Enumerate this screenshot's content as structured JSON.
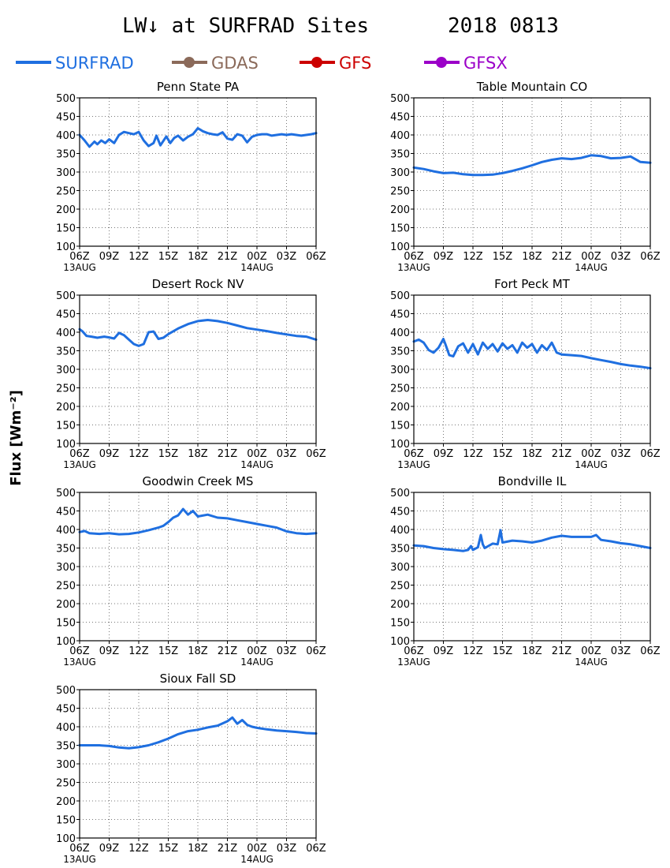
{
  "figure": {
    "title": "LW↓ at SURFRAD Sites",
    "date": "2018 0813",
    "ylabel": "Flux [Wm⁻²]",
    "legend": [
      {
        "label": "SURFRAD",
        "color": "#1f6fe0",
        "marker": false
      },
      {
        "label": "GDAS",
        "color": "#8b6a5a",
        "marker": true
      },
      {
        "label": "GFS",
        "color": "#cc0000",
        "marker": true
      },
      {
        "label": "GFSX",
        "color": "#9b00c8",
        "marker": true
      }
    ],
    "series_color": "#1f6fe0"
  },
  "chart_data": [
    {
      "type": "line",
      "title": "Penn State PA",
      "ylim": [
        100,
        500
      ],
      "yticks": [
        100,
        150,
        200,
        250,
        300,
        350,
        400,
        450,
        500
      ],
      "xlim": [
        0,
        24
      ],
      "xtick_labels": [
        "06Z",
        "09Z",
        "12Z",
        "15Z",
        "18Z",
        "21Z",
        "00Z",
        "03Z",
        "06Z"
      ],
      "date_labels": [
        "13AUG",
        "14AUG"
      ],
      "grid": true,
      "series": [
        {
          "x": [
            0,
            0.5,
            1,
            1.5,
            1.8,
            2.2,
            2.6,
            3,
            3.5,
            4,
            4.5,
            5,
            5.5,
            6,
            6.5,
            7,
            7.5,
            7.8,
            8.2,
            8.8,
            9.2,
            9.6,
            10,
            10.5,
            11,
            11.5,
            12,
            12.5,
            13,
            13.5,
            14,
            14.5,
            15,
            15.5,
            16,
            16.5,
            17,
            17.5,
            18,
            18.5,
            19,
            19.5,
            20,
            20.5,
            21,
            21.5,
            22,
            22.5,
            23,
            23.5,
            24
          ],
          "y": [
            400,
            385,
            368,
            382,
            375,
            385,
            378,
            388,
            378,
            400,
            408,
            405,
            402,
            408,
            385,
            370,
            378,
            398,
            372,
            396,
            378,
            392,
            398,
            385,
            395,
            402,
            418,
            410,
            405,
            402,
            400,
            407,
            390,
            387,
            402,
            398,
            380,
            395,
            400,
            402,
            402,
            398,
            400,
            402,
            400,
            402,
            400,
            398,
            400,
            402,
            405
          ]
        }
      ]
    },
    {
      "type": "line",
      "title": "Table Mountain CO",
      "ylim": [
        100,
        500
      ],
      "yticks": [
        100,
        150,
        200,
        250,
        300,
        350,
        400,
        450,
        500
      ],
      "xlim": [
        0,
        24
      ],
      "xtick_labels": [
        "06Z",
        "09Z",
        "12Z",
        "15Z",
        "18Z",
        "21Z",
        "00Z",
        "03Z",
        "06Z"
      ],
      "date_labels": [
        "13AUG",
        "14AUG"
      ],
      "grid": true,
      "series": [
        {
          "x": [
            0,
            1,
            2,
            3,
            4,
            5,
            6,
            7,
            8,
            9,
            10,
            11,
            12,
            13,
            14,
            15,
            16,
            17,
            18,
            19,
            20,
            21,
            22,
            23,
            24
          ],
          "y": [
            312,
            308,
            302,
            297,
            298,
            294,
            292,
            292,
            293,
            297,
            303,
            310,
            318,
            327,
            333,
            337,
            335,
            338,
            345,
            343,
            337,
            338,
            342,
            327,
            325
          ]
        }
      ]
    },
    {
      "type": "line",
      "title": "Desert Rock NV",
      "ylim": [
        100,
        500
      ],
      "yticks": [
        100,
        150,
        200,
        250,
        300,
        350,
        400,
        450,
        500
      ],
      "xlim": [
        0,
        24
      ],
      "xtick_labels": [
        "06Z",
        "09Z",
        "12Z",
        "15Z",
        "18Z",
        "21Z",
        "00Z",
        "03Z",
        "06Z"
      ],
      "date_labels": [
        "13AUG",
        "14AUG"
      ],
      "grid": true,
      "series": [
        {
          "x": [
            0,
            0.3,
            0.7,
            1.2,
            1.8,
            2.5,
            3,
            3.5,
            4,
            4.5,
            5,
            5.5,
            6,
            6.5,
            7,
            7.5,
            8,
            8.5,
            9,
            10,
            11,
            12,
            13,
            14,
            15,
            16,
            17,
            18,
            19,
            20,
            21,
            22,
            23,
            24
          ],
          "y": [
            408,
            402,
            390,
            388,
            385,
            388,
            386,
            383,
            398,
            392,
            380,
            368,
            363,
            368,
            400,
            402,
            382,
            385,
            395,
            410,
            422,
            430,
            433,
            430,
            425,
            418,
            411,
            407,
            403,
            398,
            394,
            390,
            388,
            380
          ]
        }
      ]
    },
    {
      "type": "line",
      "title": "Fort Peck MT",
      "ylim": [
        100,
        500
      ],
      "yticks": [
        100,
        150,
        200,
        250,
        300,
        350,
        400,
        450,
        500
      ],
      "xlim": [
        0,
        24
      ],
      "xtick_labels": [
        "06Z",
        "09Z",
        "12Z",
        "15Z",
        "18Z",
        "21Z",
        "00Z",
        "03Z",
        "06Z"
      ],
      "date_labels": [
        "13AUG",
        "14AUG"
      ],
      "grid": true,
      "series": [
        {
          "x": [
            0,
            0.5,
            1,
            1.5,
            2,
            2.5,
            3,
            3.2,
            3.6,
            4,
            4.5,
            5,
            5.5,
            6,
            6.5,
            7,
            7.5,
            8,
            8.5,
            9,
            9.5,
            10,
            10.5,
            11,
            11.5,
            12,
            12.5,
            13,
            13.5,
            14,
            14.5,
            15,
            16,
            17,
            18,
            19,
            20,
            21,
            22,
            23,
            24
          ],
          "y": [
            375,
            380,
            372,
            352,
            345,
            358,
            382,
            368,
            338,
            335,
            362,
            370,
            345,
            368,
            340,
            372,
            355,
            368,
            348,
            370,
            355,
            365,
            345,
            372,
            358,
            368,
            345,
            365,
            352,
            372,
            345,
            340,
            338,
            336,
            330,
            325,
            320,
            314,
            310,
            307,
            303
          ]
        }
      ]
    },
    {
      "type": "line",
      "title": "Goodwin Creek MS",
      "ylim": [
        100,
        500
      ],
      "yticks": [
        100,
        150,
        200,
        250,
        300,
        350,
        400,
        450,
        500
      ],
      "xlim": [
        0,
        24
      ],
      "xtick_labels": [
        "06Z",
        "09Z",
        "12Z",
        "15Z",
        "18Z",
        "21Z",
        "00Z",
        "03Z",
        "06Z"
      ],
      "date_labels": [
        "13AUG",
        "14AUG"
      ],
      "grid": true,
      "series": [
        {
          "x": [
            0,
            0.5,
            1,
            2,
            3,
            4,
            5,
            6,
            7,
            8,
            8.5,
            9,
            9.5,
            10,
            10.5,
            11,
            11.5,
            12,
            13,
            14,
            15,
            16,
            17,
            18,
            19,
            20,
            21,
            22,
            23,
            24
          ],
          "y": [
            393,
            396,
            390,
            388,
            390,
            387,
            388,
            392,
            398,
            405,
            410,
            420,
            432,
            438,
            455,
            440,
            450,
            435,
            440,
            432,
            430,
            425,
            420,
            415,
            410,
            405,
            395,
            390,
            388,
            390
          ]
        }
      ]
    },
    {
      "type": "line",
      "title": "Bondville IL",
      "ylim": [
        100,
        500
      ],
      "yticks": [
        100,
        150,
        200,
        250,
        300,
        350,
        400,
        450,
        500
      ],
      "xlim": [
        0,
        24
      ],
      "xtick_labels": [
        "06Z",
        "09Z",
        "12Z",
        "15Z",
        "18Z",
        "21Z",
        "00Z",
        "03Z",
        "06Z"
      ],
      "date_labels": [
        "13AUG",
        "14AUG"
      ],
      "grid": true,
      "series": [
        {
          "x": [
            0,
            1,
            2,
            3,
            4,
            5,
            5.5,
            5.8,
            6,
            6.5,
            6.8,
            7,
            7.2,
            8,
            8.5,
            8.8,
            9,
            10,
            11,
            12,
            13,
            14,
            15,
            16,
            17,
            18,
            18.5,
            19,
            20,
            21,
            22,
            23,
            24
          ],
          "y": [
            357,
            355,
            350,
            347,
            345,
            342,
            345,
            355,
            345,
            352,
            385,
            360,
            350,
            362,
            360,
            398,
            365,
            370,
            368,
            365,
            370,
            378,
            383,
            380,
            380,
            380,
            385,
            372,
            368,
            363,
            360,
            355,
            350
          ]
        }
      ]
    },
    {
      "type": "line",
      "title": "Sioux Fall SD",
      "ylim": [
        100,
        500
      ],
      "yticks": [
        100,
        150,
        200,
        250,
        300,
        350,
        400,
        450,
        500
      ],
      "xlim": [
        0,
        24
      ],
      "xtick_labels": [
        "06Z",
        "09Z",
        "12Z",
        "15Z",
        "18Z",
        "21Z",
        "00Z",
        "03Z",
        "06Z"
      ],
      "date_labels": [
        "13AUG",
        "14AUG"
      ],
      "grid": true,
      "series": [
        {
          "x": [
            0,
            1,
            2,
            3,
            4,
            5,
            6,
            7,
            8,
            9,
            10,
            11,
            12,
            13,
            14,
            15,
            15.5,
            16,
            16.5,
            17,
            17.5,
            18,
            19,
            20,
            21,
            22,
            23,
            24
          ],
          "y": [
            350,
            350,
            350,
            348,
            344,
            342,
            345,
            350,
            358,
            368,
            380,
            388,
            392,
            398,
            403,
            415,
            425,
            408,
            418,
            405,
            400,
            397,
            393,
            390,
            388,
            386,
            383,
            382
          ]
        }
      ]
    }
  ]
}
